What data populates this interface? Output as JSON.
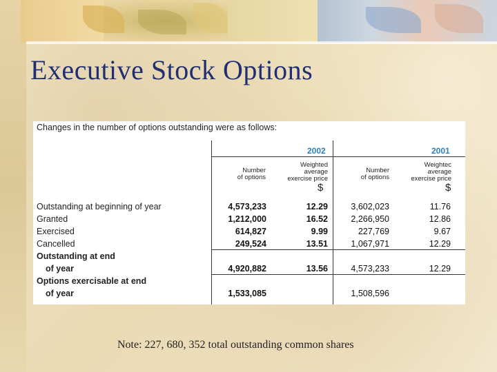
{
  "slide": {
    "title": "Executive Stock Options",
    "note": "Note: 227, 680, 352 total outstanding common shares"
  },
  "table": {
    "caption": "Changes in the number of options outstanding were as follows:",
    "years": [
      "2002",
      "2001"
    ],
    "col_number": "Number\nof options",
    "col_weighted": "Weighted\naverage\nexercise price",
    "col_weighted_2001": "Weightec\naverage\nexercise price",
    "currency": "$",
    "rows": [
      {
        "label": "Outstanding at beginning of year",
        "n2002": "4,573,233",
        "p2002": "12.29",
        "n2001": "3,602,023",
        "p2001": "11.76"
      },
      {
        "label": "Granted",
        "n2002": "1,212,000",
        "p2002": "16.52",
        "n2001": "2,266,950",
        "p2001": "12.86"
      },
      {
        "label": "Exercised",
        "n2002": "614,827",
        "p2002": "9.99",
        "n2001": "227,769",
        "p2001": "9.67"
      },
      {
        "label": "Cancelled",
        "n2002": "249,524",
        "p2002": "13.51",
        "n2001": "1,067,971",
        "p2001": "12.29"
      },
      {
        "label": "Outstanding at end",
        "label2": "of year",
        "n2002": "4,920,882",
        "p2002": "13.56",
        "n2001": "4,573,233",
        "p2001": "12.29"
      },
      {
        "label": "Options exercisable at end",
        "label2": "of year",
        "n2002": "1,533,085",
        "p2002": "",
        "n2001": "1,508,596",
        "p2001": ""
      }
    ]
  }
}
